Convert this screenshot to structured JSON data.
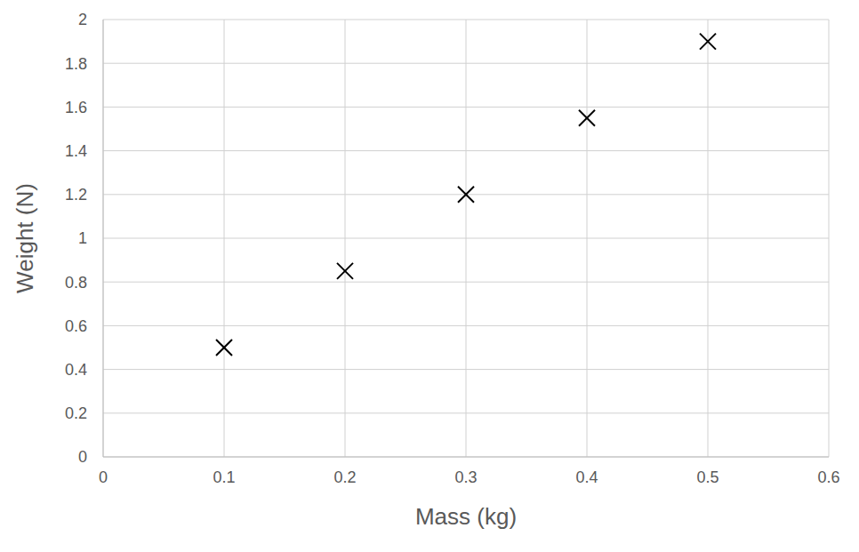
{
  "chart_data": {
    "type": "scatter",
    "x_label": "Mass (kg)",
    "y_label": "Weight (N)",
    "x": [
      0.1,
      0.2,
      0.3,
      0.4,
      0.5
    ],
    "values": [
      0.5,
      0.85,
      1.2,
      1.55,
      1.9
    ],
    "color": "#000000",
    "marker": "x",
    "xlim": [
      0,
      0.6
    ],
    "xticks": [
      0,
      0.1,
      0.2,
      0.3,
      0.4,
      0.5,
      0.6
    ],
    "ylim": [
      0,
      2
    ],
    "yticks": [
      0,
      0.2,
      0.4,
      0.6,
      0.8,
      1,
      1.2,
      1.4,
      1.6,
      1.8,
      2
    ],
    "grid": true
  }
}
